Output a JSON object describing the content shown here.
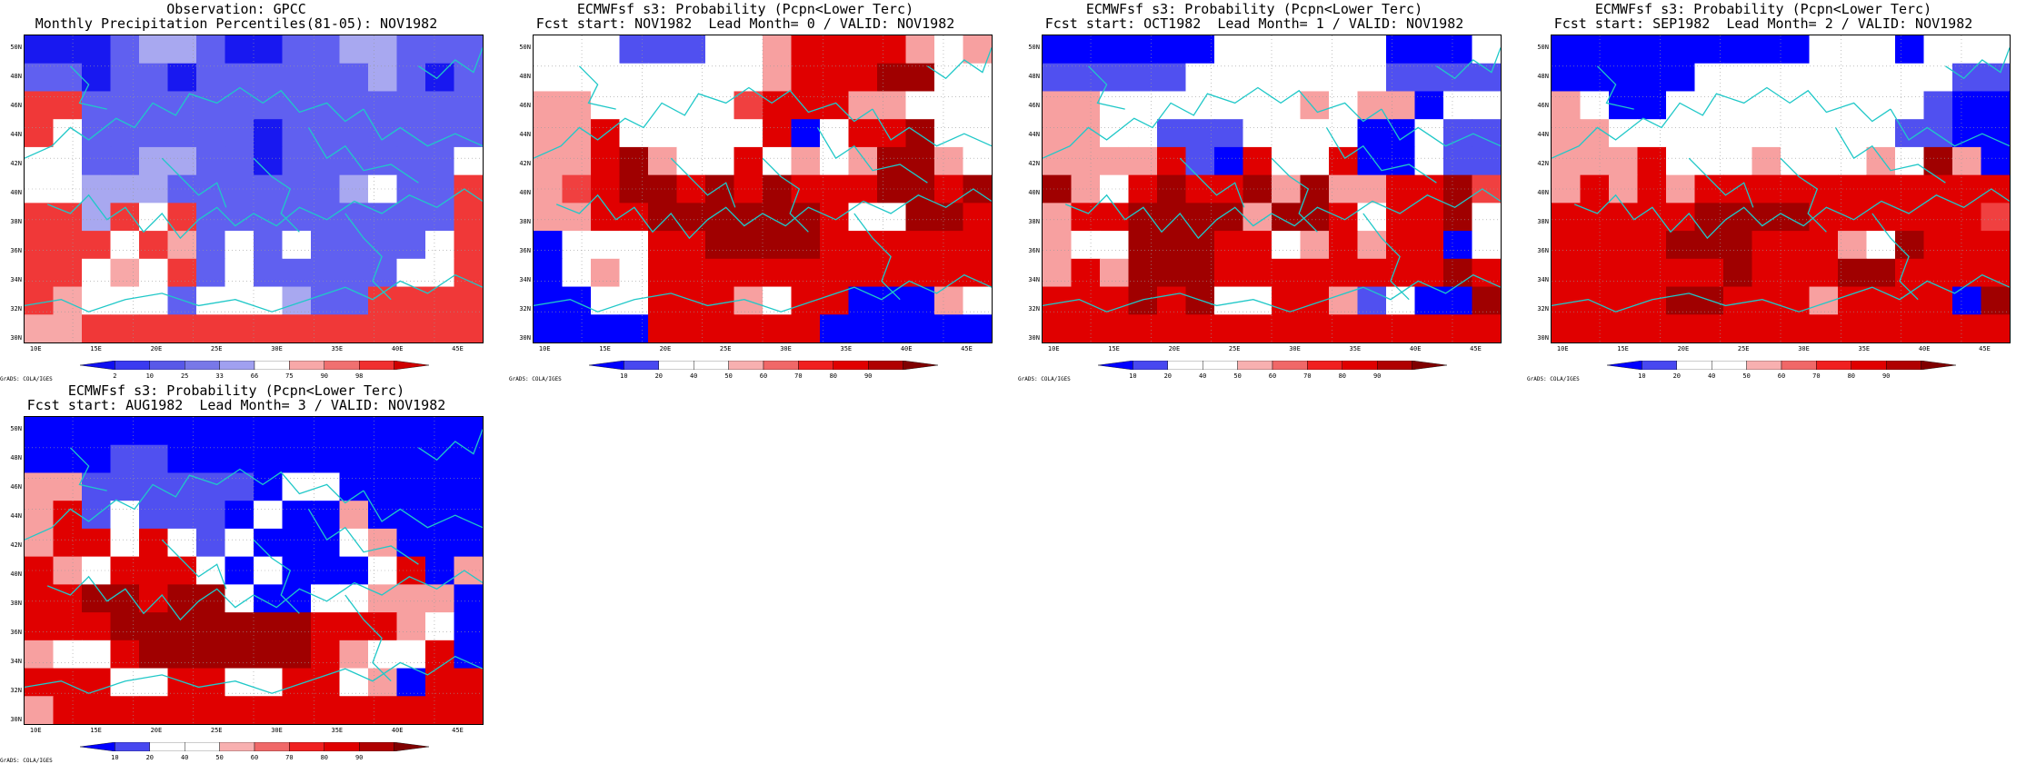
{
  "credit": "GrADS: COLA/IGES",
  "lat_labels": [
    "50N",
    "48N",
    "46N",
    "44N",
    "42N",
    "40N",
    "38N",
    "36N",
    "34N",
    "32N",
    "30N"
  ],
  "lon_labels": [
    "10E",
    "15E",
    "20E",
    "25E",
    "30E",
    "35E",
    "40E",
    "45E"
  ],
  "colorbar_obs": {
    "labels": [
      "2",
      "10",
      "25",
      "33",
      "66",
      "75",
      "90",
      "98"
    ],
    "colors": [
      "#1010f0",
      "#3a3af0",
      "#5858e8",
      "#7878e8",
      "#a0a0f0",
      "#ffffff",
      "#f8a8a8",
      "#f07070",
      "#f03030",
      "#d00000"
    ]
  },
  "colorbar_fc": {
    "labels": [
      "10",
      "20",
      "40",
      "50",
      "60",
      "70",
      "80",
      "90"
    ],
    "colors": [
      "#0000ff",
      "#4848f0",
      "#ffffff",
      "#ffffff",
      "#f8b0b0",
      "#f06868",
      "#f02020",
      "#e00000",
      "#b00000",
      "#800000"
    ]
  },
  "panels": [
    {
      "title1": "Observation: GPCC",
      "title2": "Monthly Precipitation Percentiles(81-05): NOV1982",
      "type": "obs",
      "grid": [
        "BBBbllbBBbbllbbb",
        "bbBbbBbbbbbblbBb",
        "rrbbbbbbbbbbbbbb",
        "rwbbbbbbBbbbbbbb",
        "wwbbllbbBbbbbbbw",
        "wwlllbbbbbblwbbr",
        "rrlrwrbbbbbbbbbr",
        "rrrwrpbwbwbbbbwr",
        "rrwpwrbwbbbbbwwr",
        "rpwwwbwwwlbbrrrr",
        "pprrrrrrrrrrrrrr"
      ]
    },
    {
      "title1": "ECMWFsf s3: Probability (Pcpn<Lower Terc)",
      "title2": "Fcst start: NOV1982  Lead Month= 0 / VALID: NOV1982",
      "type": "fc",
      "grid": [
        "wwwbbbwwpRRRRpwp",
        "wwwwwwwwpRRRDDww",
        "ppwwwwwrRRRppwww",
        "ppRwwwwwRBwRRDww",
        "ppRDpwwRwpwpDDpw",
        "prRDDRDRDRRRDDRD",
        "ppRRDDDDDDRwwDDR",
        "BwwwRRDDDDRRRRRR",
        "BwpwRRRRRRRRRRRR",
        "BBwwRRRpwRRBBBpw",
        "BBBBRRRRRRBBBBBB"
      ]
    },
    {
      "title1": "ECMWFsf s3: Probability (Pcpn<Lower Terc)",
      "title2": "Fcst start: OCT1982  Lead Month= 1 / VALID: NOV1982",
      "type": "fc",
      "grid": [
        "BBBBBBwwwwwwBBBw",
        "bbbbbwwwwwwwbbbb",
        "ppwwwwwwwpwppBww",
        "ppwwbbbwwwwBBwbb",
        "ppppRbBRwwRBBwbb",
        "DpwRDRRDpDppRRDr",
        "pRRDDDDpDDRwRRDw",
        "pwwDDDRRwpRpRRBw",
        "pRpDDDRRRRRRRRDR",
        "RRRDRDwwRRpbwBBD",
        "RRRRRRRRRRRRRRRR"
      ]
    },
    {
      "title1": "ECMWFsf s3: Probability (Pcpn<Lower Terc)",
      "title2": "Fcst start: SEP1982  Lead Month= 2 / VALID: NOV1982",
      "type": "fc",
      "grid": [
        "BBBBBBBBBwwwBwww",
        "BBBBBwwwwwwwwwbb",
        "pwBBwwwwwwwwwbBB",
        "ppwwwwwwwwwwbbBB",
        "pppRwwwpwwwpwDpB",
        "pRpRpRRRRRRRRRRR",
        "RRRRRDDDDRRRRRRr",
        "RRRRDDDRRRpwDRRR",
        "RRRRRRDRRRDDRRRR",
        "RRRRDDRRRpRRRRBD",
        "RRRRRRRRRRRRRRRR"
      ]
    },
    {
      "title1": "ECMWFsf s3: Probability (Pcpn<Lower Terc)",
      "title2": "Fcst start: AUG1982  Lead Month= 3 / VALID: NOV1982",
      "type": "fc",
      "grid": [
        "BBBBBBBBBBBBBBBB",
        "BBBbbBBBBBBBBBBB",
        "ppbbbbbbBwwBBBBB",
        "pRbwbbbBwBBpBBBB",
        "pRRwRwbwBBBwpBBB",
        "RpwRRRwBwBBBwRBp",
        "RRDDRDDwBBwwpppB",
        "RRRDDDDDDDRRRpwB",
        "pwwRDDDDDDRpwwRB",
        "RRRwwRRwwRRwpBRR",
        "pRRRRRRRRRRRRRRR"
      ]
    }
  ]
}
